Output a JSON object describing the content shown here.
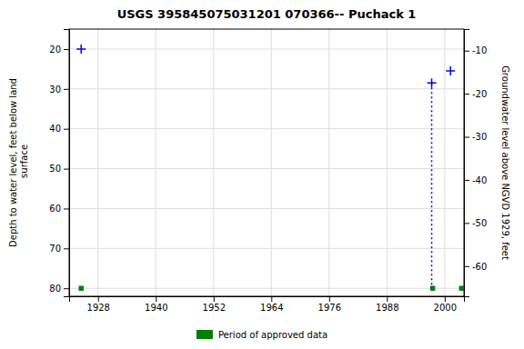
{
  "chart_data": {
    "type": "scatter",
    "title": "USGS 395845075031201 070366-- Puchack 1",
    "ylabel": "Depth to water level, feet below land\n surface",
    "y2label": "Groundwater level above NGVD 1929, feet",
    "xlim": [
      1922,
      2004
    ],
    "xticks": [
      1928,
      1940,
      1952,
      1964,
      1976,
      1988,
      2000
    ],
    "ylim": [
      82,
      15
    ],
    "yticks": [
      20,
      30,
      40,
      50,
      60,
      70,
      80
    ],
    "y2lim": [
      -67,
      -5
    ],
    "y2ticks": [
      -10,
      -20,
      -30,
      -40,
      -50,
      -60
    ],
    "grid": true,
    "legend": "bottom",
    "series": [
      {
        "type": "scatter",
        "marker": "plus",
        "color": "#0000ff",
        "x": [
          1924.5,
          1997.3,
          2001.2
        ],
        "values": [
          20.0,
          28.5,
          25.5
        ]
      },
      {
        "name": "Period of approved data",
        "type": "scatter",
        "marker": "square",
        "color": "#008000",
        "x": [
          1924.5,
          1997.5,
          2003.5
        ],
        "values": [
          80.0,
          80.0,
          80.0
        ]
      },
      {
        "type": "line",
        "line_style": "dotted",
        "color": "#0000ff",
        "x": [
          1997.3,
          1997.3
        ],
        "values": [
          28.5,
          80.0
        ]
      }
    ]
  }
}
